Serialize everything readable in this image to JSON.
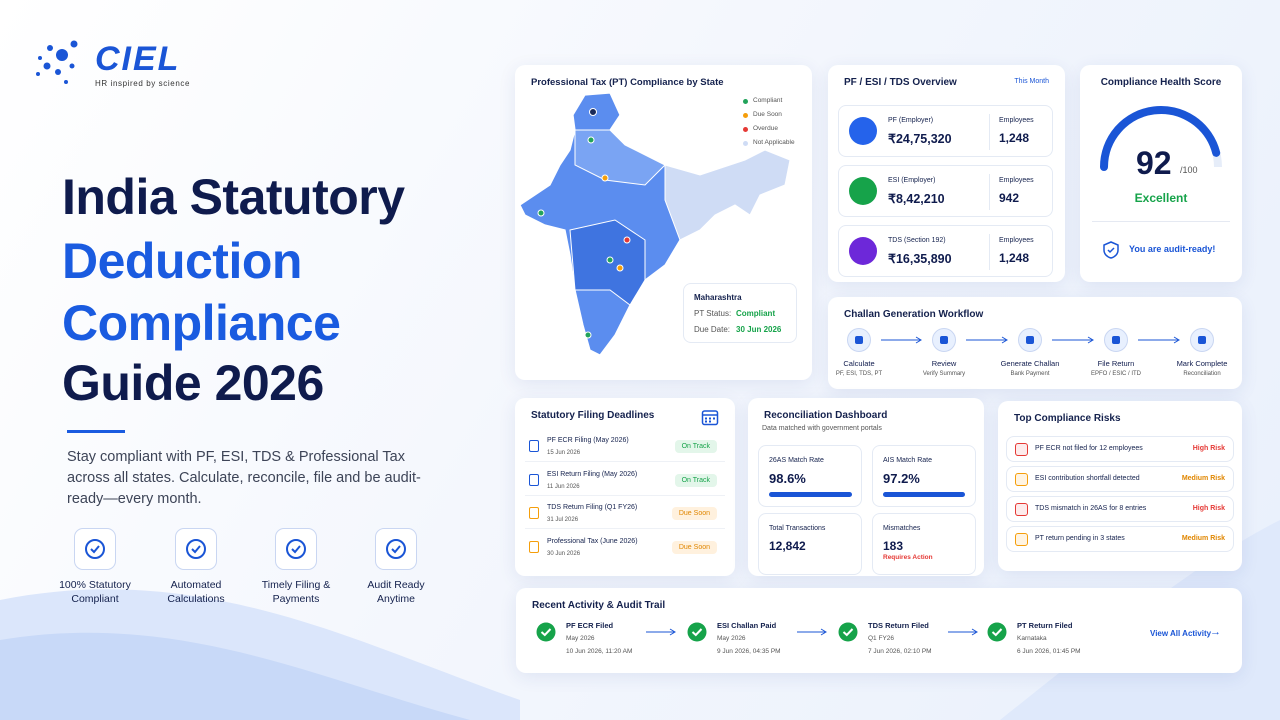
{
  "brand": {
    "name": "CIEL",
    "tagline": "HR inspired by science"
  },
  "hero": {
    "title_lines": [
      "India Statutory",
      "Deduction",
      "Compliance",
      "Guide 2026"
    ],
    "description": "Stay compliant with PF, ESI, TDS & Professional Tax across all states. Calculate, reconcile, file and be audit-ready—every month.",
    "features": [
      "100% Statutory Compliant",
      "Automated Calculations",
      "Timely Filing & Payments",
      "Audit Ready Anytime"
    ]
  },
  "map_card": {
    "title": "Professional Tax (PT) Compliance by State",
    "legend": [
      "Compliant",
      "Due Soon",
      "Overdue",
      "Not Applicable"
    ],
    "tooltip": {
      "state": "Maharashtra",
      "status_label": "PT Status:",
      "status": "Compliant",
      "due_label": "Due Date:",
      "due": "30 Jun 2026"
    }
  },
  "overview": {
    "title": "PF / ESI / TDS Overview",
    "period": "This Month",
    "rows": [
      {
        "name": "PF (Employer)",
        "amount": "₹24,75,320",
        "employees_label": "Employees",
        "employees": "1,248"
      },
      {
        "name": "ESI (Employer)",
        "amount": "₹8,42,210",
        "employees_label": "Employees",
        "employees": "942"
      },
      {
        "name": "TDS (Section 192)",
        "amount": "₹16,35,890",
        "employees_label": "Employees",
        "employees": "1,248"
      }
    ]
  },
  "health": {
    "title": "Compliance Health Score",
    "score": 92,
    "out_of": {
      "value": 100,
      "label": "/100"
    },
    "rating": "Excellent",
    "note": "You are audit-ready!"
  },
  "workflow": {
    "title": "Challan Generation Workflow",
    "steps": [
      {
        "title": "Calculate",
        "sub": "PF, ESI, TDS, PT"
      },
      {
        "title": "Review",
        "sub": "Verify Summary"
      },
      {
        "title": "Generate Challan",
        "sub": "Bank Payment"
      },
      {
        "title": "File Return",
        "sub": "EPFO / ESIC / ITD"
      },
      {
        "title": "Mark Complete",
        "sub": "Reconciliation"
      }
    ]
  },
  "deadlines": {
    "title": "Statutory Filing Deadlines",
    "items": [
      {
        "name": "PF ECR Filing (May 2026)",
        "date": "15 Jun 2026",
        "status": "On Track"
      },
      {
        "name": "ESI Return Filing (May 2026)",
        "date": "11 Jun 2026",
        "status": "On Track"
      },
      {
        "name": "TDS Return Filing (Q1 FY26)",
        "date": "31 Jul 2026",
        "status": "Due Soon"
      },
      {
        "name": "Professional Tax (June 2026)",
        "date": "30 Jun 2026",
        "status": "Due Soon"
      }
    ]
  },
  "reconciliation": {
    "title": "Reconciliation Dashboard",
    "subtitle": "Data matched with government portals",
    "rates": [
      {
        "label": "26AS Match Rate",
        "value": 98.6,
        "value_label": "98.6%"
      },
      {
        "label": "AIS Match Rate",
        "value": 97.2,
        "value_label": "97.2%"
      }
    ],
    "totals": [
      {
        "label": "Total Transactions",
        "value": "12,842"
      },
      {
        "label": "Mismatches",
        "value": "183",
        "note": "Requires Action"
      }
    ]
  },
  "risks": {
    "title": "Top Compliance Risks",
    "items": [
      {
        "text": "PF ECR not filed for 12 employees",
        "level": "High Risk"
      },
      {
        "text": "ESI contribution shortfall detected",
        "level": "Medium Risk"
      },
      {
        "text": "TDS mismatch in 26AS for 8 entries",
        "level": "High Risk"
      },
      {
        "text": "PT return pending in 3 states",
        "level": "Medium Risk"
      }
    ]
  },
  "activity": {
    "title": "Recent Activity & Audit Trail",
    "link": "View All Activity",
    "items": [
      {
        "title": "PF ECR Filed",
        "sub": "May 2026",
        "time": "10 Jun 2026, 11:20 AM"
      },
      {
        "title": "ESI Challan Paid",
        "sub": "May 2026",
        "time": "9 Jun 2026, 04:35 PM"
      },
      {
        "title": "TDS Return Filed",
        "sub": "Q1 FY26",
        "time": "7 Jun 2026, 02:10 PM"
      },
      {
        "title": "PT Return Filed",
        "sub": "Karnataka",
        "time": "6 Jun 2026, 01:45 PM"
      }
    ]
  }
}
